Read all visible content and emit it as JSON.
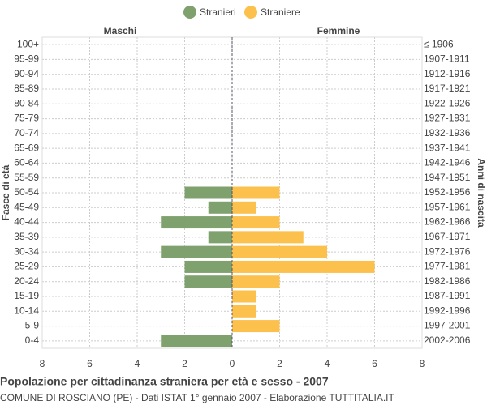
{
  "chart_data": {
    "type": "pyramid",
    "title": "Popolazione per cittadinanza straniera per età e sesso - 2007",
    "subtitle": "COMUNE DI ROSCIANO (PE) - Dati ISTAT 1° gennaio 2007 - Elaborazione TUTTITALIA.IT",
    "left_label": "Maschi",
    "right_label": "Femmine",
    "ylabel": "Fasce di età",
    "y2label": "Anni di nascita",
    "categories": [
      "100+",
      "95-99",
      "90-94",
      "85-89",
      "80-84",
      "75-79",
      "70-74",
      "65-69",
      "60-64",
      "55-59",
      "50-54",
      "45-49",
      "40-44",
      "35-39",
      "30-34",
      "25-29",
      "20-24",
      "15-19",
      "10-14",
      "5-9",
      "0-4"
    ],
    "birth_years": [
      "≤ 1906",
      "1907-1911",
      "1912-1916",
      "1917-1921",
      "1922-1926",
      "1927-1931",
      "1932-1936",
      "1937-1941",
      "1942-1946",
      "1947-1951",
      "1952-1956",
      "1957-1961",
      "1962-1966",
      "1967-1971",
      "1972-1976",
      "1977-1981",
      "1982-1986",
      "1987-1991",
      "1992-1996",
      "1997-2001",
      "2002-2006"
    ],
    "series": [
      {
        "name": "Stranieri",
        "color": "#7fa16e",
        "side": "left",
        "values": [
          0,
          0,
          0,
          0,
          0,
          0,
          0,
          0,
          0,
          0,
          2,
          1,
          3,
          1,
          3,
          2,
          2,
          0,
          0,
          0,
          3
        ]
      },
      {
        "name": "Straniere",
        "color": "#fcc14d",
        "side": "right",
        "values": [
          0,
          0,
          0,
          0,
          0,
          0,
          0,
          0,
          0,
          0,
          2,
          1,
          2,
          3,
          4,
          6,
          2,
          1,
          1,
          2,
          0
        ]
      }
    ],
    "xlim": [
      -8,
      8
    ],
    "xticks": [
      {
        "value": -8,
        "label": "8"
      },
      {
        "value": -6,
        "label": "6"
      },
      {
        "value": -4,
        "label": "4"
      },
      {
        "value": -2,
        "label": "2"
      },
      0,
      2,
      4,
      6,
      8
    ],
    "grid": true
  }
}
